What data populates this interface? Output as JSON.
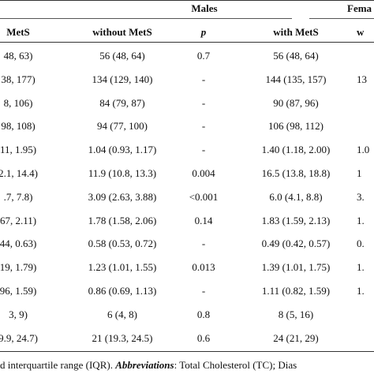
{
  "group_headers": {
    "males": "Males",
    "females": "Fema"
  },
  "columns": [
    "MetS",
    "without MetS",
    "p",
    "with MetS",
    "w"
  ],
  "rows": [
    [
      "48, 63)",
      "56 (48, 64)",
      "0.7",
      "56 (48, 64)",
      ""
    ],
    [
      "38, 177)",
      "134 (129, 140)",
      "-",
      "144 (135, 157)",
      "13"
    ],
    [
      "8, 106)",
      "84 (79, 87)",
      "-",
      "90 (87, 96)",
      ""
    ],
    [
      "98, 108)",
      "94 (77, 100)",
      "-",
      "106 (98, 112)",
      ""
    ],
    [
      "11, 1.95)",
      "1.04 (0.93, 1.17)",
      "-",
      "1.40 (1.18, 2.00)",
      "1.0"
    ],
    [
      "2.1, 14.4)",
      "11.9 (10.8, 13.3)",
      "0.004",
      "16.5 (13.8, 18.8)",
      "1"
    ],
    [
      ".7, 7.8)",
      "3.09 (2.63, 3.88)",
      "<0.001",
      "6.0 (4.1, 8.8)",
      "3."
    ],
    [
      "67, 2.11)",
      "1.78 (1.58, 2.06)",
      "0.14",
      "1.83 (1.59, 2.13)",
      "1."
    ],
    [
      "44, 0.63)",
      "0.58 (0.53, 0.72)",
      "-",
      "0.49 (0.42, 0.57)",
      "0."
    ],
    [
      "19, 1.79)",
      "1.23 (1.01, 1.55)",
      "0.013",
      "1.39 (1.01, 1.75)",
      "1."
    ],
    [
      "96, 1.59)",
      "0.86 (0.69, 1.13)",
      "-",
      "1.11 (0.82, 1.59)",
      "1."
    ],
    [
      "3, 9)",
      "6 (4, 8)",
      "0.8",
      "8 (5, 16)",
      ""
    ],
    [
      "9.9, 24.7)",
      "21 (19.3, 24.5)",
      "0.6",
      "24 (21, 29)",
      ""
    ]
  ],
  "footnote": {
    "text": "d interquartile range (IQR). ",
    "abbr_label": "Abbreviations",
    "rest": ": Total Cholesterol (TC); Dias"
  }
}
